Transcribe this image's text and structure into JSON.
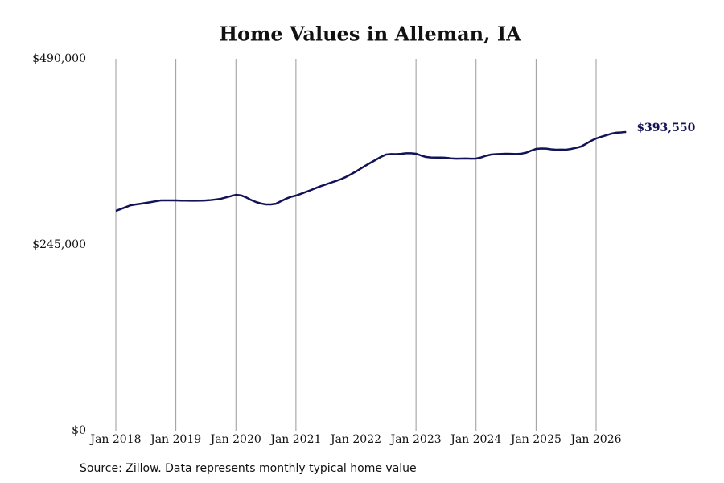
{
  "chart_data": {
    "type": "line",
    "title": "Home Values in Alleman, IA",
    "source": "Source: Zillow. Data represents monthly typical home value",
    "x": [
      "2018-01",
      "2018-02",
      "2018-03",
      "2018-04",
      "2018-05",
      "2018-06",
      "2018-07",
      "2018-08",
      "2018-09",
      "2018-10",
      "2018-11",
      "2018-12",
      "2019-01",
      "2019-02",
      "2019-03",
      "2019-04",
      "2019-05",
      "2019-06",
      "2019-07",
      "2019-08",
      "2019-09",
      "2019-10",
      "2019-11",
      "2019-12",
      "2020-01",
      "2020-02",
      "2020-03",
      "2020-04",
      "2020-05",
      "2020-06",
      "2020-07",
      "2020-08",
      "2020-09",
      "2020-10",
      "2020-11",
      "2020-12",
      "2021-01",
      "2021-02",
      "2021-03",
      "2021-04",
      "2021-05",
      "2021-06",
      "2021-07",
      "2021-08",
      "2021-09",
      "2021-10",
      "2021-11",
      "2021-12",
      "2022-01",
      "2022-02",
      "2022-03",
      "2022-04",
      "2022-05",
      "2022-06",
      "2022-07",
      "2022-08",
      "2022-09",
      "2022-10",
      "2022-11",
      "2022-12",
      "2023-01",
      "2023-02",
      "2023-03",
      "2023-04",
      "2023-05",
      "2023-06",
      "2023-07",
      "2023-08",
      "2023-09",
      "2023-10",
      "2023-11",
      "2023-12",
      "2024-01",
      "2024-02",
      "2024-03",
      "2024-04",
      "2024-05",
      "2024-06",
      "2024-07",
      "2024-08",
      "2024-09",
      "2024-10",
      "2024-11",
      "2024-12",
      "2025-01",
      "2025-02",
      "2025-03",
      "2025-04",
      "2025-05",
      "2025-06",
      "2025-07",
      "2025-08",
      "2025-09",
      "2025-10",
      "2025-11",
      "2025-12",
      "2026-01",
      "2026-02",
      "2026-03",
      "2026-04",
      "2026-05",
      "2026-06",
      "2026-07"
    ],
    "series": [
      {
        "name": "Home value",
        "color": "#121257",
        "values": [
          289500,
          292000,
          294500,
          297000,
          298000,
          299000,
          300000,
          301100,
          302200,
          303300,
          303300,
          303300,
          303300,
          303100,
          303000,
          302900,
          302900,
          303000,
          303300,
          303800,
          304600,
          305500,
          307200,
          309000,
          310700,
          310000,
          307500,
          304000,
          301200,
          299300,
          298000,
          298000,
          299000,
          302300,
          305500,
          308000,
          309700,
          312000,
          314500,
          317000,
          319700,
          322200,
          324500,
          326800,
          329000,
          331300,
          334300,
          337800,
          341500,
          345600,
          349500,
          353300,
          357000,
          360800,
          363800,
          364500,
          364300,
          364700,
          365500,
          365500,
          364900,
          362600,
          360600,
          360000,
          359800,
          359800,
          359500,
          358800,
          358400,
          358500,
          358600,
          358400,
          358500,
          360000,
          362200,
          363800,
          364300,
          364600,
          364900,
          364700,
          364500,
          364900,
          366200,
          368900,
          371200,
          371800,
          371600,
          370700,
          370200,
          370300,
          370200,
          371200,
          372600,
          374400,
          378000,
          381800,
          385000,
          387200,
          389200,
          391200,
          392600,
          392900,
          393550
        ],
        "value_labels": [
          null,
          null,
          null,
          null,
          null,
          null,
          null,
          null,
          null,
          null,
          null,
          null,
          null,
          null,
          null,
          null,
          null,
          null,
          null,
          null,
          null,
          null,
          null,
          null,
          null,
          null,
          null,
          null,
          null,
          null,
          null,
          null,
          null,
          null,
          null,
          null,
          null,
          null,
          null,
          null,
          null,
          null,
          null,
          null,
          null,
          null,
          null,
          null,
          null,
          null,
          null,
          null,
          null,
          null,
          null,
          null,
          null,
          null,
          null,
          null,
          null,
          null,
          null,
          null,
          null,
          null,
          null,
          null,
          null,
          null,
          null,
          null,
          null,
          null,
          null,
          null,
          null,
          null,
          null,
          null,
          null,
          null,
          null,
          null,
          null,
          null,
          null,
          null,
          null,
          null,
          null,
          null,
          null,
          null,
          null,
          null,
          null,
          null,
          null,
          null,
          null,
          null,
          "$393,550"
        ]
      }
    ],
    "xticks": [
      {
        "value": "2018-01",
        "label": "Jan 2018"
      },
      {
        "value": "2019-01",
        "label": "Jan 2019"
      },
      {
        "value": "2020-01",
        "label": "Jan 2020"
      },
      {
        "value": "2021-01",
        "label": "Jan 2021"
      },
      {
        "value": "2022-01",
        "label": "Jan 2022"
      },
      {
        "value": "2023-01",
        "label": "Jan 2023"
      },
      {
        "value": "2024-01",
        "label": "Jan 2024"
      },
      {
        "value": "2025-01",
        "label": "Jan 2025"
      },
      {
        "value": "2026-01",
        "label": "Jan 2026"
      }
    ],
    "ylim": [
      0,
      490000
    ],
    "yticks": [
      {
        "value": 0,
        "label": "$0"
      },
      {
        "value": 245000,
        "label": "$245,000"
      },
      {
        "value": 490000,
        "label": "$490,000"
      }
    ],
    "grid": "x"
  }
}
